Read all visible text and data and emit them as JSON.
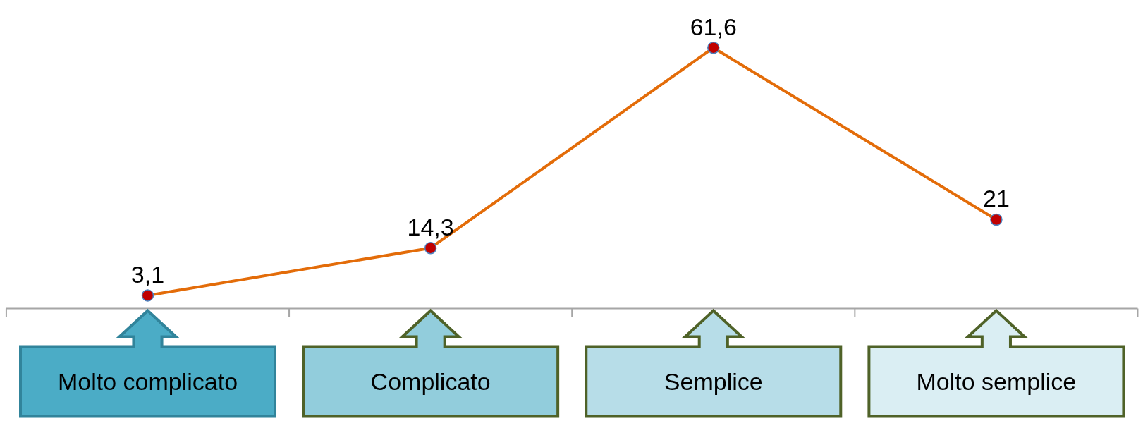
{
  "chart_data": {
    "type": "line",
    "categories": [
      "Molto complicato",
      "Complicato",
      "Semplice",
      "Molto semplice"
    ],
    "series": [
      {
        "color": "#e36c09",
        "values": [
          3.1,
          14.3,
          61.6,
          21
        ],
        "value_labels": [
          "3,1",
          "14,3",
          "61,6",
          "21"
        ]
      }
    ],
    "ylim": [
      0,
      72.8
    ],
    "marker": "circle",
    "line_style": "solid",
    "grid": false
  }
}
